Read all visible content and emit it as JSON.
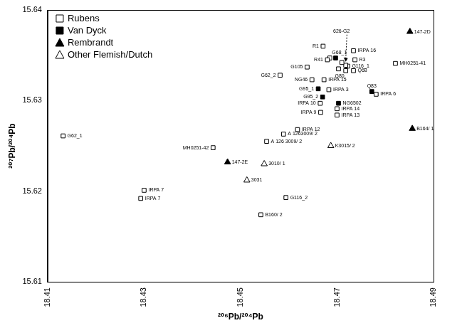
{
  "chart_data": {
    "type": "scatter",
    "x_label": "²⁰⁶Pb/²⁰⁴Pb",
    "y_label": "²⁰⁷Pb/²⁰⁴Pb",
    "xlim": [
      18.41,
      18.49
    ],
    "xticks": [
      18.41,
      18.43,
      18.45,
      18.47,
      18.49
    ],
    "ylim": [
      15.61,
      15.64
    ],
    "yticks": [
      15.61,
      15.62,
      15.63,
      15.64
    ],
    "grid": false,
    "legend": "upper left",
    "series": [
      {
        "name": "Rubens",
        "color": "#000000",
        "marker": "square_open",
        "labels": [
          "R1",
          "G68_1",
          "R41",
          "IRPA 16",
          "R3",
          "G105",
          "G116_1",
          "Q68",
          "G80",
          "626-G2",
          null,
          null,
          "MH0251-41",
          "G62_2",
          "NG46",
          "IRPA 15",
          "IRPA 3",
          "IRPA 6",
          "IRPA 10",
          "IRPA 14",
          "IRPA 9",
          "IRPA 13",
          "IRPA 12",
          "A 1263009/ 2",
          "A 126 3009/ 2",
          "MH0251-42",
          "G62_1",
          "IRPA 7",
          "IRPA 7",
          "G116_2",
          "B160/ 2"
        ],
        "x": [
          18.4671,
          18.4685,
          18.468,
          18.4734,
          18.4737,
          18.4638,
          18.4722,
          18.4734,
          18.4718,
          18.4718,
          18.4703,
          18.471,
          18.4821,
          18.4582,
          18.4648,
          18.4673,
          18.4683,
          18.4781,
          18.4665,
          18.47,
          18.4666,
          18.47,
          18.4618,
          18.4589,
          18.4554,
          18.4443,
          18.4132,
          18.43,
          18.4293,
          18.4594,
          18.4542
        ],
        "y": [
          15.636,
          15.6347,
          15.6345,
          15.6355,
          15.6345,
          15.6337,
          15.6338,
          15.6333,
          15.6333,
          15.6339,
          15.6335,
          15.6342,
          15.6341,
          15.6328,
          15.6323,
          15.6323,
          15.6312,
          15.6307,
          15.6297,
          15.6291,
          15.6287,
          15.6284,
          15.6268,
          15.6263,
          15.6255,
          15.6248,
          15.6261,
          15.6201,
          15.6192,
          15.6193,
          15.6174
        ]
      },
      {
        "name": "Van Dyck",
        "color": "#000000",
        "marker": "square",
        "labels": [
          null,
          "G95_1",
          "G95_2",
          "Q83",
          "NG6502"
        ],
        "x": [
          18.4697,
          18.4661,
          18.467,
          18.4772,
          18.4703
        ],
        "y": [
          15.6347,
          15.6313,
          15.6304,
          15.631,
          15.6297
        ]
      },
      {
        "name": "Rembrandt",
        "color": "#000000",
        "marker": "triangle",
        "labels": [
          "147-2D",
          "B164/ 1",
          "147-2E"
        ],
        "x": [
          18.4851,
          18.4856,
          18.4473
        ],
        "y": [
          15.6376,
          15.6269,
          15.6232
        ]
      },
      {
        "name": "Other Flemish/Dutch",
        "color": "#000000",
        "marker": "triangle_open",
        "labels": [
          "K3015/ 2",
          "3010/ 1",
          "3031"
        ],
        "x": [
          18.4687,
          18.4549,
          18.4513
        ],
        "y": [
          15.625,
          15.623,
          15.6212
        ]
      }
    ]
  }
}
